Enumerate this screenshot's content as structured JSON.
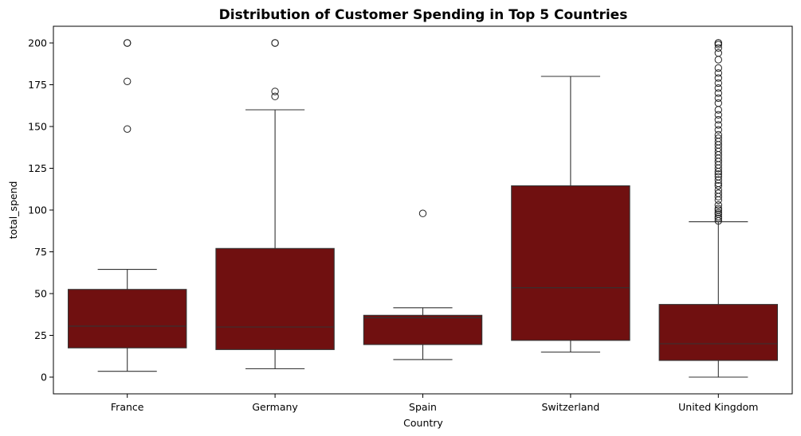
{
  "chart_data": {
    "type": "box",
    "title": "Distribution of Customer Spending in Top 5 Countries",
    "xlabel": "Country",
    "ylabel": "total_spend",
    "ylim": [
      -10,
      210
    ],
    "yticks": [
      0,
      25,
      50,
      75,
      100,
      125,
      150,
      175,
      200
    ],
    "grid": false,
    "box_color": "#701010",
    "line_color": "#333333",
    "categories": [
      "France",
      "Germany",
      "Spain",
      "Switzerland",
      "United Kingdom"
    ],
    "boxes": [
      {
        "whisker_low": 3.5,
        "q1": 17.5,
        "median": 30.5,
        "q3": 52.5,
        "whisker_high": 64.5,
        "outliers": [
          148.5,
          177,
          200,
          200
        ]
      },
      {
        "whisker_low": 5,
        "q1": 16.5,
        "median": 30,
        "q3": 77,
        "whisker_high": 160,
        "outliers": [
          168,
          171,
          200,
          200
        ]
      },
      {
        "whisker_low": 10.5,
        "q1": 19.5,
        "median": 35.5,
        "q3": 37,
        "whisker_high": 41.5,
        "outliers": [
          98
        ]
      },
      {
        "whisker_low": 15,
        "q1": 22,
        "median": 53.5,
        "q3": 114.5,
        "whisker_high": 180,
        "outliers": []
      },
      {
        "whisker_low": 0,
        "q1": 10,
        "median": 20,
        "q3": 43.5,
        "whisker_high": 93,
        "outliers": [
          93.5,
          95,
          96,
          97.5,
          98.5,
          100,
          101,
          103,
          106,
          108,
          110,
          112,
          114.5,
          116,
          118,
          120,
          121.5,
          123,
          125,
          127,
          129,
          131,
          133,
          135,
          137,
          139,
          141,
          143,
          145,
          148,
          151,
          154,
          157,
          160,
          164,
          167,
          170,
          173,
          176,
          179,
          182,
          185,
          190,
          194,
          197,
          199,
          200,
          200
        ]
      }
    ]
  }
}
